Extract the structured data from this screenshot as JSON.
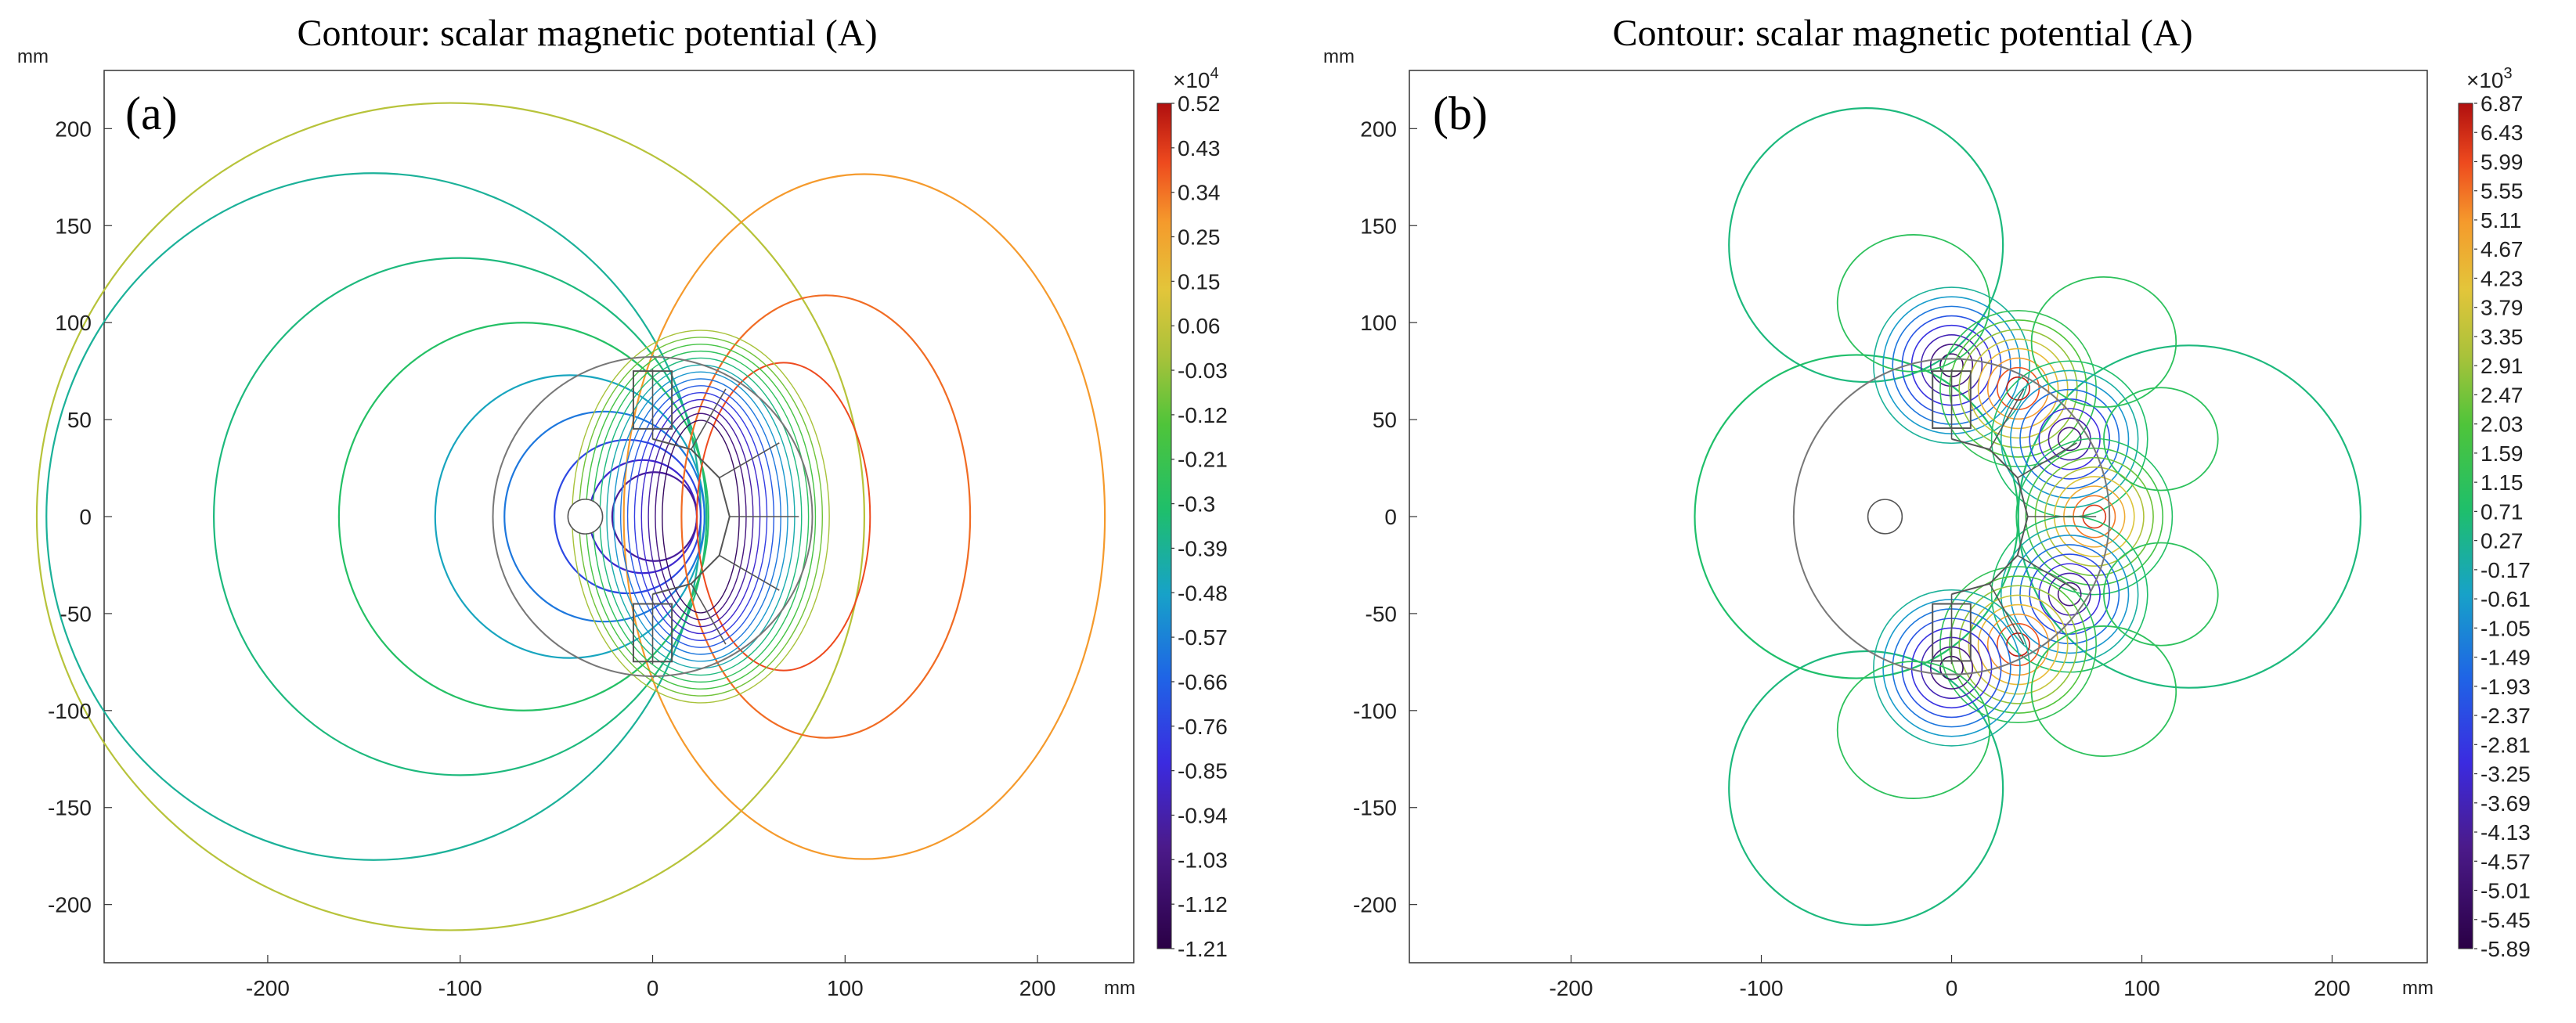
{
  "chart_data": [
    {
      "type": "contour",
      "panel_label": "(a)",
      "title": "Contour: scalar magnetic potential (A)",
      "xlabel": "mm",
      "ylabel": "mm",
      "xlim": [
        -285,
        250
      ],
      "ylim": [
        -230,
        230
      ],
      "xticks": [
        -200,
        -100,
        0,
        100,
        200
      ],
      "yticks": [
        200,
        150,
        100,
        50,
        0,
        -50,
        -100,
        -150,
        -200
      ],
      "colorbar": {
        "multiplier_base": "×10",
        "multiplier_exp": "4",
        "max": 0.52,
        "min": -1.21,
        "labels": [
          "0.52",
          "0.43",
          "0.34",
          "0.25",
          "0.15",
          "0.06",
          "-0.03",
          "-0.12",
          "-0.21",
          "-0.3",
          "-0.39",
          "-0.48",
          "-0.57",
          "-0.66",
          "-0.76",
          "-0.85",
          "-0.94",
          "-1.03",
          "-1.12",
          "-1.21"
        ]
      }
    },
    {
      "type": "contour",
      "panel_label": "(b)",
      "title": "Contour: scalar magnetic potential (A)",
      "xlabel": "mm",
      "ylabel": "mm",
      "xlim": [
        -285,
        250
      ],
      "ylim": [
        -230,
        230
      ],
      "xticks": [
        -200,
        -100,
        0,
        100,
        200
      ],
      "yticks": [
        200,
        150,
        100,
        50,
        0,
        -50,
        -100,
        -150,
        -200
      ],
      "colorbar": {
        "multiplier_base": "×10",
        "multiplier_exp": "3",
        "max": 6.87,
        "min": -5.89,
        "labels": [
          "6.87",
          "6.43",
          "5.99",
          "5.55",
          "5.11",
          "4.67",
          "4.23",
          "3.79",
          "3.35",
          "2.91",
          "2.47",
          "2.03",
          "1.59",
          "1.15",
          "0.71",
          "0.27",
          "-0.17",
          "-0.61",
          "-1.05",
          "-1.49",
          "-1.93",
          "-2.37",
          "-2.81",
          "-3.25",
          "-3.69",
          "-4.13",
          "-4.57",
          "-5.01",
          "-5.45",
          "-5.89"
        ]
      }
    }
  ]
}
